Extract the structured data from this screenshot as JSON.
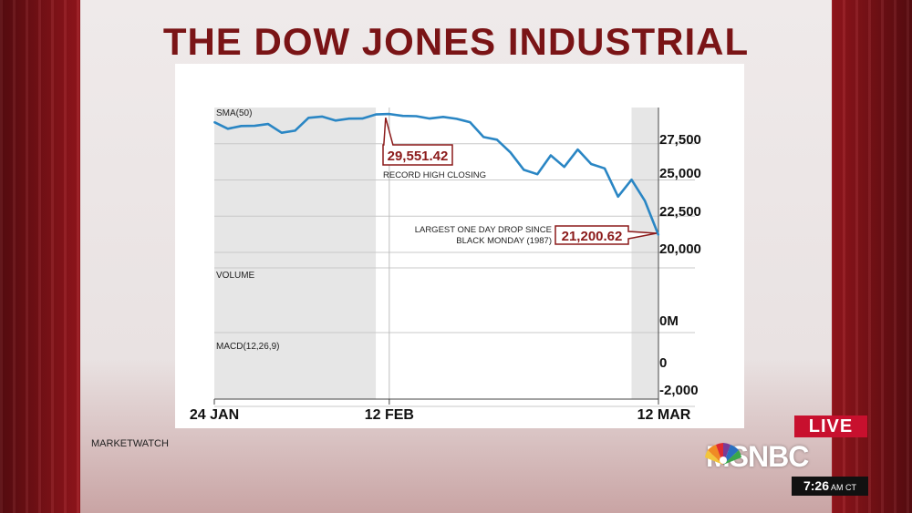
{
  "title": "THE DOW JONES INDUSTRIAL",
  "source": "MARKETWATCH",
  "broadcast": {
    "live_label": "LIVE",
    "network": "MSNBC",
    "time": "7:26",
    "time_suffix": "AM CT"
  },
  "colors": {
    "line": "#2a86c4",
    "title": "#7a1416",
    "callout_border": "#8b1a1a",
    "callout_text": "#8b1a1a",
    "shade": "#e6e6e6",
    "live_bg": "#c8102e"
  },
  "chart_data": {
    "type": "line",
    "panel_labels": {
      "price": "SMA(50)",
      "volume": "VOLUME",
      "macd": "MACD(12,26,9)"
    },
    "x_tick_labels": [
      "24 JAN",
      "12 FEB",
      "12 MAR"
    ],
    "y_ticks_price": [
      "27,500",
      "25,000",
      "22,500",
      "20,000"
    ],
    "y_ticks_volume": [
      "0M"
    ],
    "y_ticks_macd": [
      "0",
      "-2,000"
    ],
    "ylim": [
      19500,
      30000
    ],
    "grid": true,
    "shaded_ranges": [
      [
        "24 JAN",
        "11 FEB"
      ],
      [
        "10 MAR",
        "12 MAR"
      ]
    ],
    "series": [
      {
        "x": [
          "24 JAN",
          "27 JAN",
          "28 JAN",
          "29 JAN",
          "30 JAN",
          "31 JAN",
          "3 FEB",
          "4 FEB",
          "5 FEB",
          "6 FEB",
          "7 FEB",
          "10 FEB",
          "11 FEB",
          "12 FEB",
          "13 FEB",
          "14 FEB",
          "18 FEB",
          "19 FEB",
          "20 FEB",
          "21 FEB",
          "24 FEB",
          "25 FEB",
          "26 FEB",
          "27 FEB",
          "28 FEB",
          "2 MAR",
          "3 MAR",
          "4 MAR",
          "5 MAR",
          "6 MAR",
          "9 MAR",
          "10 MAR",
          "11 MAR",
          "12 MAR"
        ],
        "values": [
          28990,
          28536,
          28723,
          28734,
          28859,
          28256,
          28400,
          29290,
          29380,
          29100,
          29230,
          29240,
          29520,
          29551,
          29420,
          29400,
          29240,
          29350,
          29220,
          28990,
          27960,
          27780,
          26900,
          25700,
          25400,
          26700,
          25900,
          27100,
          26100,
          25800,
          23850,
          25020,
          23550,
          21200
        ]
      }
    ],
    "annotations": [
      {
        "value": "29,551.42",
        "label": "RECORD HIGH CLOSING",
        "at": "12 FEB"
      },
      {
        "value": "21,200.62",
        "label_line1": "LARGEST ONE DAY DROP SINCE",
        "label_line2": "BLACK MONDAY (1987)",
        "at": "12 MAR"
      }
    ]
  }
}
